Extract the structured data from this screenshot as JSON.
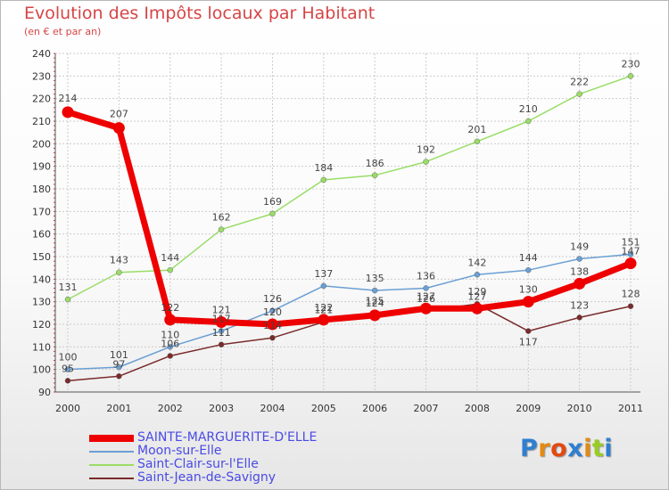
{
  "chart_data": {
    "type": "line",
    "title": "Evolution des Impôts locaux par Habitant",
    "subtitle": "(en € et par an)",
    "xlabel": "",
    "ylabel": "",
    "x": [
      "2000",
      "2001",
      "2002",
      "2003",
      "2004",
      "2005",
      "2006",
      "2007",
      "2008",
      "2009",
      "2010",
      "2011"
    ],
    "ylim": [
      90,
      240
    ],
    "yticks": [
      90,
      100,
      110,
      120,
      130,
      140,
      150,
      160,
      170,
      180,
      190,
      200,
      210,
      220,
      230,
      240
    ],
    "grid": true,
    "series": [
      {
        "name": "SAINTE-MARGUERITE-D'ELLE",
        "color": "#ee0000",
        "values": [
          214,
          207,
          122,
          121,
          120,
          122,
          124,
          127,
          127,
          130,
          138,
          147
        ]
      },
      {
        "name": "Moon-sur-Elle",
        "color": "#6a9fd4",
        "values": [
          100,
          101,
          110,
          117,
          126,
          137,
          135,
          136,
          142,
          144,
          149,
          151
        ]
      },
      {
        "name": "Saint-Clair-sur-l'Elle",
        "color": "#99dd66",
        "values": [
          131,
          143,
          144,
          162,
          169,
          184,
          186,
          192,
          201,
          210,
          222,
          230
        ]
      },
      {
        "name": "Saint-Jean-de-Savigny",
        "color": "#7a2a2a",
        "values": [
          95,
          97,
          106,
          111,
          114,
          121,
          125,
          126,
          129,
          117,
          123,
          128
        ]
      }
    ]
  },
  "brand": {
    "letters": [
      "P",
      "r",
      "o",
      "x",
      "i",
      "t",
      "i"
    ],
    "colors": [
      "#2f7fd1",
      "#e28a12",
      "#e24a12",
      "#2f7fd1",
      "#e28a12",
      "#99cc22",
      "#2f7fd1"
    ]
  }
}
